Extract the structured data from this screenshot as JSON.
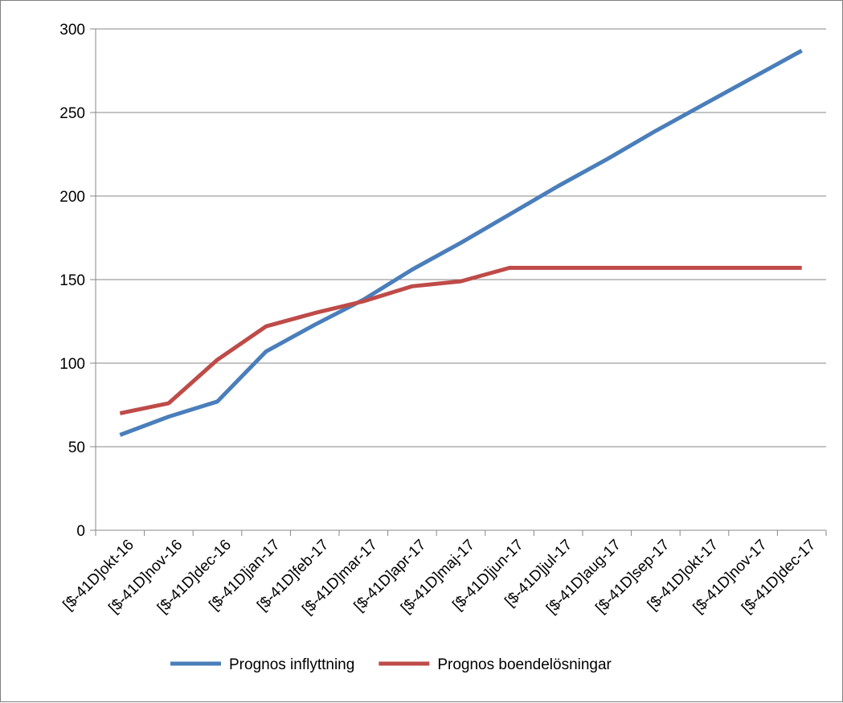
{
  "chart_data": {
    "type": "line",
    "categories": [
      "[$-41D]okt-16",
      "[$-41D]nov-16",
      "[$-41D]dec-16",
      "[$-41D]jan-17",
      "[$-41D]feb-17",
      "[$-41D]mar-17",
      "[$-41D]apr-17",
      "[$-41D]maj-17",
      "[$-41D]jun-17",
      "[$-41D]jul-17",
      "[$-41D]aug-17",
      "[$-41D]sep-17",
      "[$-41D]okt-17",
      "[$-41D]nov-17",
      "[$-41D]dec-17"
    ],
    "series": [
      {
        "name": "Prognos inflyttning",
        "color": "#4a7ebb",
        "values": [
          57,
          68,
          77,
          107,
          123,
          138,
          156,
          172,
          189,
          206,
          222,
          239,
          255,
          271,
          287
        ]
      },
      {
        "name": "Prognos boendelösningar",
        "color": "#be4b48",
        "values": [
          70,
          76,
          102,
          122,
          130,
          137,
          146,
          149,
          157,
          157,
          157,
          157,
          157,
          157,
          157
        ]
      }
    ],
    "yticks": [
      0,
      50,
      100,
      150,
      200,
      250,
      300
    ],
    "ylim": [
      0,
      300
    ],
    "grid": true,
    "legend_position": "bottom"
  }
}
